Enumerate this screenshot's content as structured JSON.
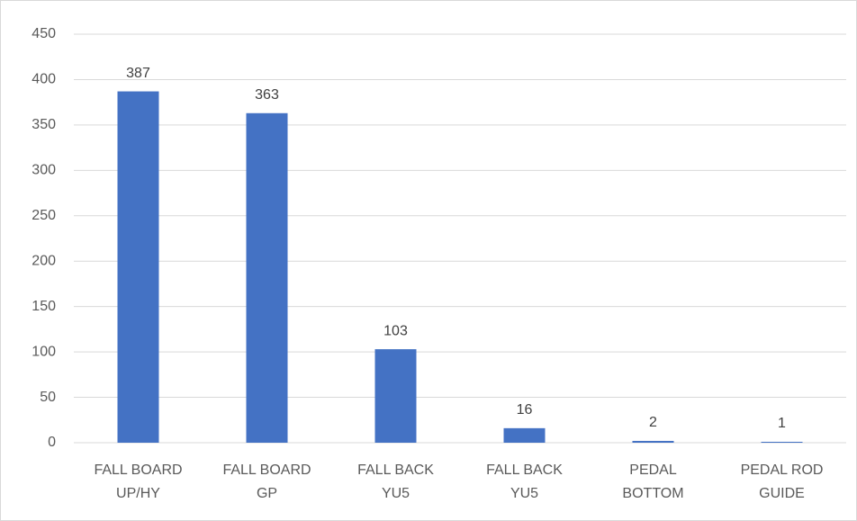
{
  "chart_data": {
    "type": "bar",
    "categories": [
      [
        "FALL BOARD",
        "UP/HY"
      ],
      [
        "FALL BOARD",
        "GP"
      ],
      [
        "FALL BACK",
        "YU5"
      ],
      [
        "FALL BACK",
        "YU5"
      ],
      [
        "PEDAL",
        "BOTTOM"
      ],
      [
        "PEDAL ROD",
        "GUIDE"
      ]
    ],
    "values": [
      387,
      363,
      103,
      16,
      2,
      1
    ],
    "color": "#4472c4",
    "ylim": [
      0,
      450
    ],
    "yticks": [
      0,
      50,
      100,
      150,
      200,
      250,
      300,
      350,
      400,
      450
    ],
    "grid": true
  }
}
